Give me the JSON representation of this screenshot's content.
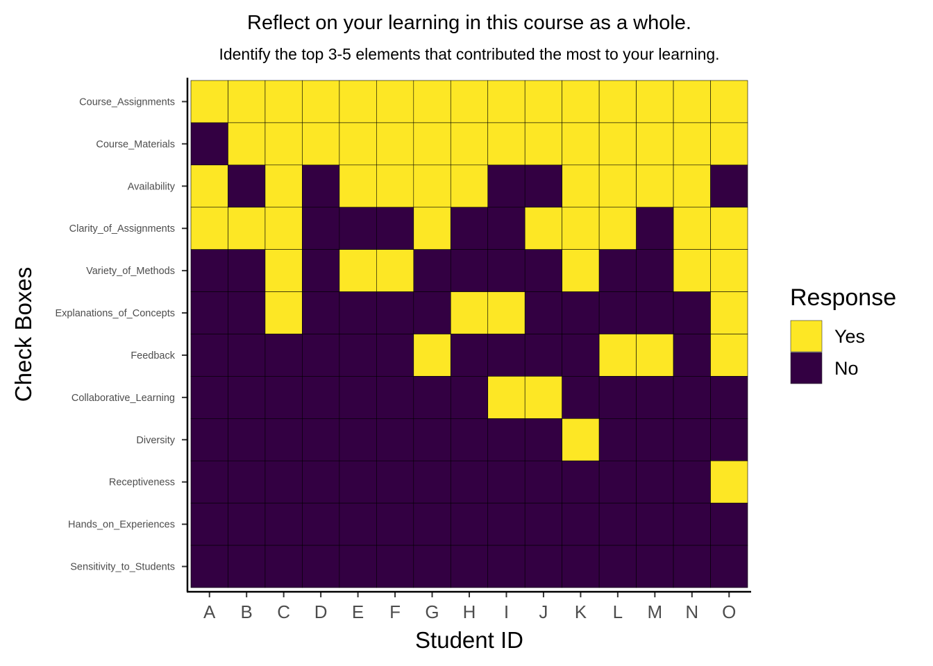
{
  "chart_data": {
    "type": "heatmap",
    "title": "Reflect on your learning in this course as a whole.",
    "subtitle": "Identify the top 3-5 elements that contributed the most to your learning.",
    "xlabel": "Student ID",
    "ylabel": "Check Boxes",
    "x": [
      "A",
      "B",
      "C",
      "D",
      "E",
      "F",
      "G",
      "H",
      "I",
      "J",
      "K",
      "L",
      "M",
      "N",
      "O"
    ],
    "y": [
      "Course_Assignments",
      "Course_Materials",
      "Availability",
      "Clarity_of_Assignments",
      "Variety_of_Methods",
      "Explanations_of_Concepts",
      "Feedback",
      "Collaborative_Learning",
      "Diversity",
      "Receptiveness",
      "Hands_on_Experiences",
      "Sensitivity_to_Students"
    ],
    "values": [
      [
        "Yes",
        "Yes",
        "Yes",
        "Yes",
        "Yes",
        "Yes",
        "Yes",
        "Yes",
        "Yes",
        "Yes",
        "Yes",
        "Yes",
        "Yes",
        "Yes",
        "Yes"
      ],
      [
        "No",
        "Yes",
        "Yes",
        "Yes",
        "Yes",
        "Yes",
        "Yes",
        "Yes",
        "Yes",
        "Yes",
        "Yes",
        "Yes",
        "Yes",
        "Yes",
        "Yes"
      ],
      [
        "Yes",
        "No",
        "Yes",
        "No",
        "Yes",
        "Yes",
        "Yes",
        "Yes",
        "No",
        "No",
        "Yes",
        "Yes",
        "Yes",
        "Yes",
        "No"
      ],
      [
        "Yes",
        "Yes",
        "Yes",
        "No",
        "No",
        "No",
        "Yes",
        "No",
        "No",
        "Yes",
        "Yes",
        "Yes",
        "No",
        "Yes",
        "Yes"
      ],
      [
        "No",
        "No",
        "Yes",
        "No",
        "Yes",
        "Yes",
        "No",
        "No",
        "No",
        "No",
        "Yes",
        "No",
        "No",
        "Yes",
        "Yes"
      ],
      [
        "No",
        "No",
        "Yes",
        "No",
        "No",
        "No",
        "No",
        "Yes",
        "Yes",
        "No",
        "No",
        "No",
        "No",
        "No",
        "Yes"
      ],
      [
        "No",
        "No",
        "No",
        "No",
        "No",
        "No",
        "Yes",
        "No",
        "No",
        "No",
        "No",
        "Yes",
        "Yes",
        "No",
        "Yes"
      ],
      [
        "No",
        "No",
        "No",
        "No",
        "No",
        "No",
        "No",
        "No",
        "Yes",
        "Yes",
        "No",
        "No",
        "No",
        "No",
        "No"
      ],
      [
        "No",
        "No",
        "No",
        "No",
        "No",
        "No",
        "No",
        "No",
        "No",
        "No",
        "Yes",
        "No",
        "No",
        "No",
        "No"
      ],
      [
        "No",
        "No",
        "No",
        "No",
        "No",
        "No",
        "No",
        "No",
        "No",
        "No",
        "No",
        "No",
        "No",
        "No",
        "Yes"
      ],
      [
        "No",
        "No",
        "No",
        "No",
        "No",
        "No",
        "No",
        "No",
        "No",
        "No",
        "No",
        "No",
        "No",
        "No",
        "No"
      ],
      [
        "No",
        "No",
        "No",
        "No",
        "No",
        "No",
        "No",
        "No",
        "No",
        "No",
        "No",
        "No",
        "No",
        "No",
        "No"
      ]
    ],
    "legend": {
      "title": "Response",
      "position": "right",
      "entries": [
        {
          "label": "Yes",
          "color": "#fde725"
        },
        {
          "label": "No",
          "color": "#330042"
        }
      ]
    },
    "grid": false
  }
}
